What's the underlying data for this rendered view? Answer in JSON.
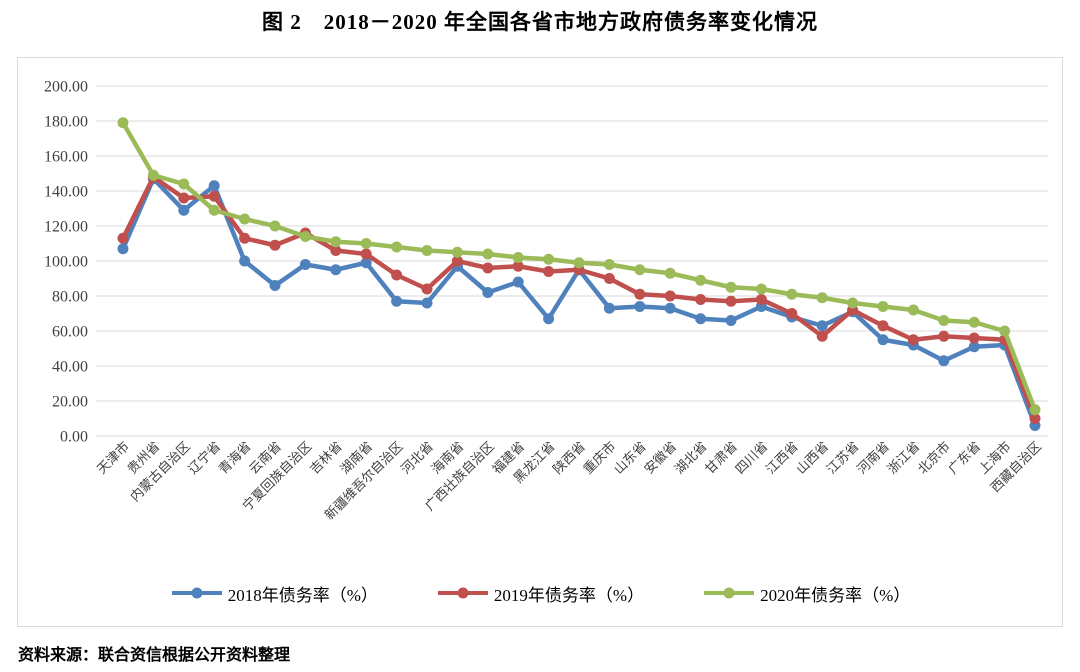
{
  "title": "图 2　2018－2020 年全国各省市地方政府债务率变化情况",
  "source_note": "资料来源：联合资信根据公开资料整理",
  "colors": {
    "grid": "#d9d9d9",
    "axis_text": "#404040",
    "frame_border": "#d9d9d9",
    "series_2018": "#4F81BD",
    "series_2019": "#C0504D",
    "series_2020": "#9BBB59"
  },
  "chart_data": {
    "type": "line",
    "title": "图 2　2018－2020 年全国各省市地方政府债务率变化情况",
    "xlabel": "",
    "ylabel": "",
    "ylim": [
      0,
      200
    ],
    "y_tick_step": 20,
    "y_tick_format": "two-decimals",
    "grid": "horizontal",
    "legend_position": "bottom",
    "marker": "circle",
    "categories": [
      "天津市",
      "贵州省",
      "内蒙古自治区",
      "辽宁省",
      "青海省",
      "云南省",
      "宁夏回族自治区",
      "吉林省",
      "湖南省",
      "新疆维吾尔自治区",
      "河北省",
      "海南省",
      "广西壮族自治区",
      "福建省",
      "黑龙江省",
      "陕西省",
      "重庆市",
      "山东省",
      "安徽省",
      "湖北省",
      "甘肃省",
      "四川省",
      "江西省",
      "山西省",
      "江苏省",
      "河南省",
      "浙江省",
      "北京市",
      "广东省",
      "上海市",
      "西藏自治区"
    ],
    "series": [
      {
        "name": "2018年债务率（%）",
        "color": "#4F81BD",
        "values": [
          107,
          147,
          129,
          143,
          100,
          86,
          98,
          95,
          99,
          77,
          76,
          97,
          82,
          88,
          67,
          95,
          73,
          74,
          73,
          67,
          66,
          74,
          68,
          63,
          71,
          55,
          52,
          43,
          51,
          52,
          6
        ]
      },
      {
        "name": "2019年债务率（%）",
        "color": "#C0504D",
        "values": [
          113,
          148,
          136,
          137,
          113,
          109,
          116,
          106,
          104,
          92,
          84,
          100,
          96,
          97,
          94,
          95,
          90,
          81,
          80,
          78,
          77,
          78,
          70,
          57,
          72,
          63,
          55,
          57,
          56,
          55,
          10
        ]
      },
      {
        "name": "2020年债务率（%）",
        "color": "#9BBB59",
        "values": [
          179,
          149,
          144,
          129,
          124,
          120,
          114,
          111,
          110,
          108,
          106,
          105,
          104,
          102,
          101,
          99,
          98,
          95,
          93,
          89,
          85,
          84,
          81,
          79,
          76,
          74,
          72,
          66,
          65,
          60,
          15
        ]
      }
    ]
  }
}
